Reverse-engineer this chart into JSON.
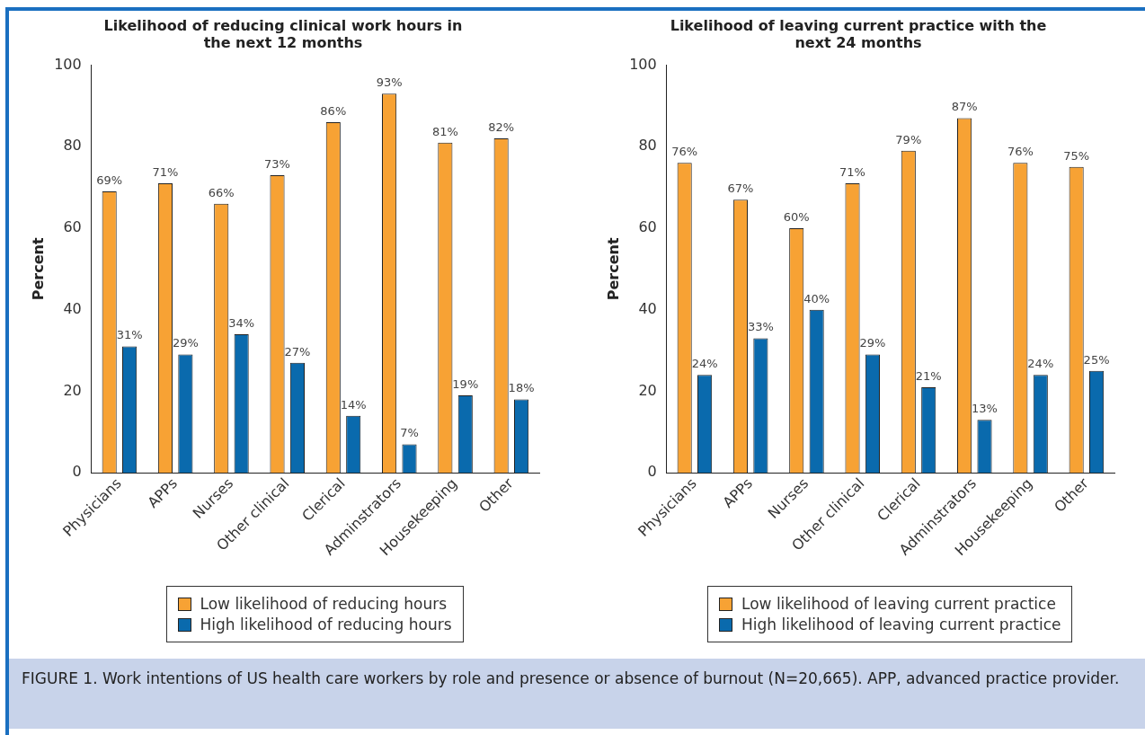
{
  "chart_data": [
    {
      "type": "bar",
      "title": "Likelihood of reducing clinical work hours in the next 12 months",
      "ylabel": "Percent",
      "categories": [
        "Physicians",
        "APPs",
        "Nurses",
        "Other clinical",
        "Clerical",
        "Adminstrators",
        "Housekeeping",
        "Other"
      ],
      "series": [
        {
          "name": "Low likelihood of reducing hours",
          "color": "#f7a234",
          "values": [
            69,
            71,
            66,
            73,
            86,
            93,
            81,
            82
          ],
          "value_labels": [
            "69%",
            "71%",
            "66%",
            "73%",
            "86%",
            "93%",
            "81%",
            "82%"
          ]
        },
        {
          "name": "High likelihood of reducing hours",
          "color": "#0a6aad",
          "values": [
            31,
            29,
            34,
            27,
            14,
            7,
            19,
            18
          ],
          "value_labels": [
            "31%",
            "29%",
            "34%",
            "27%",
            "14%",
            "7%",
            "19%",
            "18%"
          ]
        }
      ],
      "ylim": [
        0,
        100
      ],
      "yticks": [
        0,
        20,
        40,
        60,
        80,
        100
      ],
      "legend": "bottom",
      "annotations": [
        "FIGURE 1. Work intentions of US health care workers by role and presence or absence of burnout (N=20,665). APP, advanced practice provider."
      ]
    },
    {
      "type": "bar",
      "title": "Likelihood of leaving current practice with the next 24 months",
      "ylabel": "Percent",
      "categories": [
        "Physicians",
        "APPs",
        "Nurses",
        "Other clinical",
        "Clerical",
        "Adminstrators",
        "Housekeeping",
        "Other"
      ],
      "series": [
        {
          "name": "Low likelihood of leaving current practice",
          "color": "#f7a234",
          "values": [
            76,
            67,
            60,
            71,
            79,
            87,
            76,
            75
          ],
          "value_labels": [
            "76%",
            "67%",
            "60%",
            "71%",
            "79%",
            "87%",
            "76%",
            "75%"
          ]
        },
        {
          "name": "High likelihood of leaving current practice",
          "color": "#0a6aad",
          "values": [
            24,
            33,
            40,
            29,
            21,
            13,
            24,
            25
          ],
          "value_labels": [
            "24%",
            "33%",
            "40%",
            "29%",
            "21%",
            "13%",
            "24%",
            "25%"
          ]
        }
      ],
      "ylim": [
        0,
        100
      ],
      "yticks": [
        0,
        20,
        40,
        60,
        80,
        100
      ],
      "legend": "bottom"
    }
  ]
}
